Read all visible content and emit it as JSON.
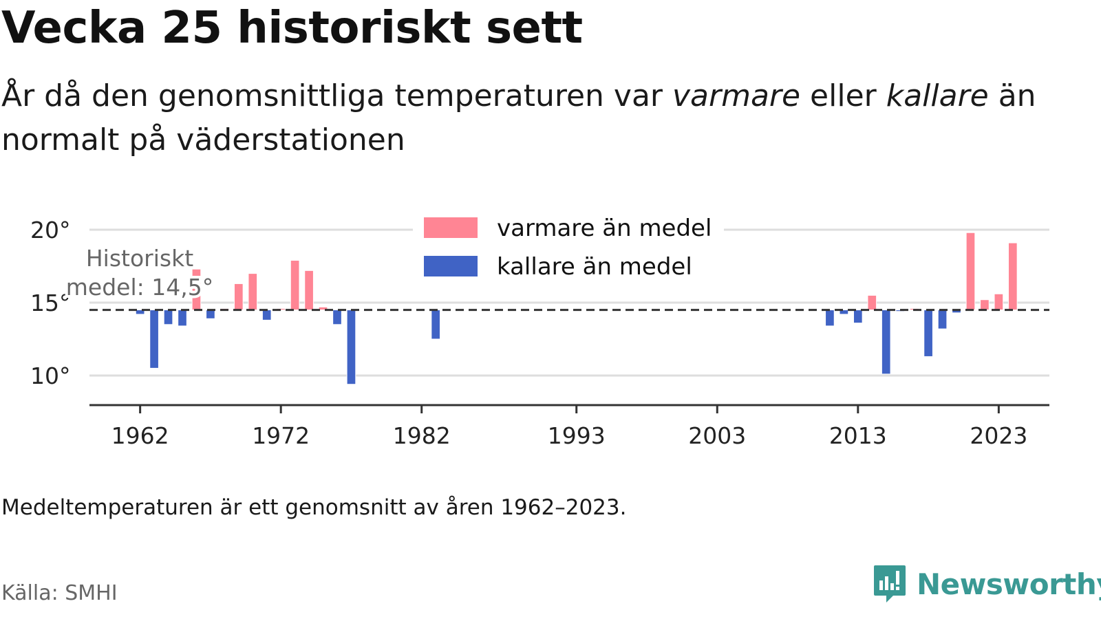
{
  "header": {
    "title": "Vecka 25 historiskt sett",
    "subtitle_prefix": "År då den genomsnittliga temperaturen var ",
    "subtitle_warm": "varmare",
    "subtitle_mid": " eller ",
    "subtitle_cold": "kallare",
    "subtitle_suffix": " än normalt på väderstationen"
  },
  "footer": {
    "note": "Medeltemperaturen är ett genomsnitt av åren 1962–2023.",
    "source": "Källa: SMHI",
    "brand": "Newsworthy"
  },
  "colors": {
    "warm": "#ff8594",
    "cold": "#4063c5",
    "brand": "#3a9994"
  },
  "chart_data": {
    "type": "bar",
    "title": "",
    "xlabel": "",
    "ylabel": "",
    "baseline": 14.5,
    "baseline_label_line1": "Historiskt",
    "baseline_label_line2": "medel: 14,5°",
    "yticks": [
      {
        "value": 10,
        "label": "10°"
      },
      {
        "value": 15,
        "label": "15°"
      },
      {
        "value": 20,
        "label": "20°"
      }
    ],
    "xticks": [
      {
        "value": 1962,
        "label": "1962"
      },
      {
        "value": 1972,
        "label": "1972"
      },
      {
        "value": 1982,
        "label": "1982"
      },
      {
        "value": 1993,
        "label": "1993"
      },
      {
        "value": 2003,
        "label": "2003"
      },
      {
        "value": 2013,
        "label": "2013"
      },
      {
        "value": 2023,
        "label": "2023"
      }
    ],
    "xlim": [
      1958.4,
      2026.6
    ],
    "ylim": [
      8.0,
      21.5
    ],
    "grid": true,
    "legend": {
      "position": "top-center",
      "items": [
        {
          "key": "warm",
          "label": "varmare än medel"
        },
        {
          "key": "cold",
          "label": "kallare än medel"
        }
      ]
    },
    "series": [
      {
        "year": 1962,
        "value": 14.2
      },
      {
        "year": 1963,
        "value": 10.5
      },
      {
        "year": 1964,
        "value": 13.5
      },
      {
        "year": 1965,
        "value": 13.4
      },
      {
        "year": 1966,
        "value": 17.3
      },
      {
        "year": 1967,
        "value": 13.9
      },
      {
        "year": 1968,
        "value": 14.6
      },
      {
        "year": 1969,
        "value": 16.3
      },
      {
        "year": 1970,
        "value": 17.0
      },
      {
        "year": 1971,
        "value": 13.8
      },
      {
        "year": 1972,
        "value": 14.6
      },
      {
        "year": 1973,
        "value": 17.9
      },
      {
        "year": 1974,
        "value": 17.2
      },
      {
        "year": 1975,
        "value": 14.7
      },
      {
        "year": 1976,
        "value": 13.5
      },
      {
        "year": 1977,
        "value": 9.4
      },
      {
        "year": 1983,
        "value": 12.5
      },
      {
        "year": 2011,
        "value": 13.4
      },
      {
        "year": 2012,
        "value": 14.2
      },
      {
        "year": 2013,
        "value": 13.6
      },
      {
        "year": 2014,
        "value": 15.5
      },
      {
        "year": 2015,
        "value": 10.1
      },
      {
        "year": 2016,
        "value": 14.4
      },
      {
        "year": 2017,
        "value": 14.6
      },
      {
        "year": 2018,
        "value": 11.3
      },
      {
        "year": 2019,
        "value": 13.2
      },
      {
        "year": 2020,
        "value": 14.3
      },
      {
        "year": 2021,
        "value": 19.8
      },
      {
        "year": 2022,
        "value": 15.2
      },
      {
        "year": 2023,
        "value": 15.6
      },
      {
        "year": 2024,
        "value": 19.1
      }
    ]
  }
}
